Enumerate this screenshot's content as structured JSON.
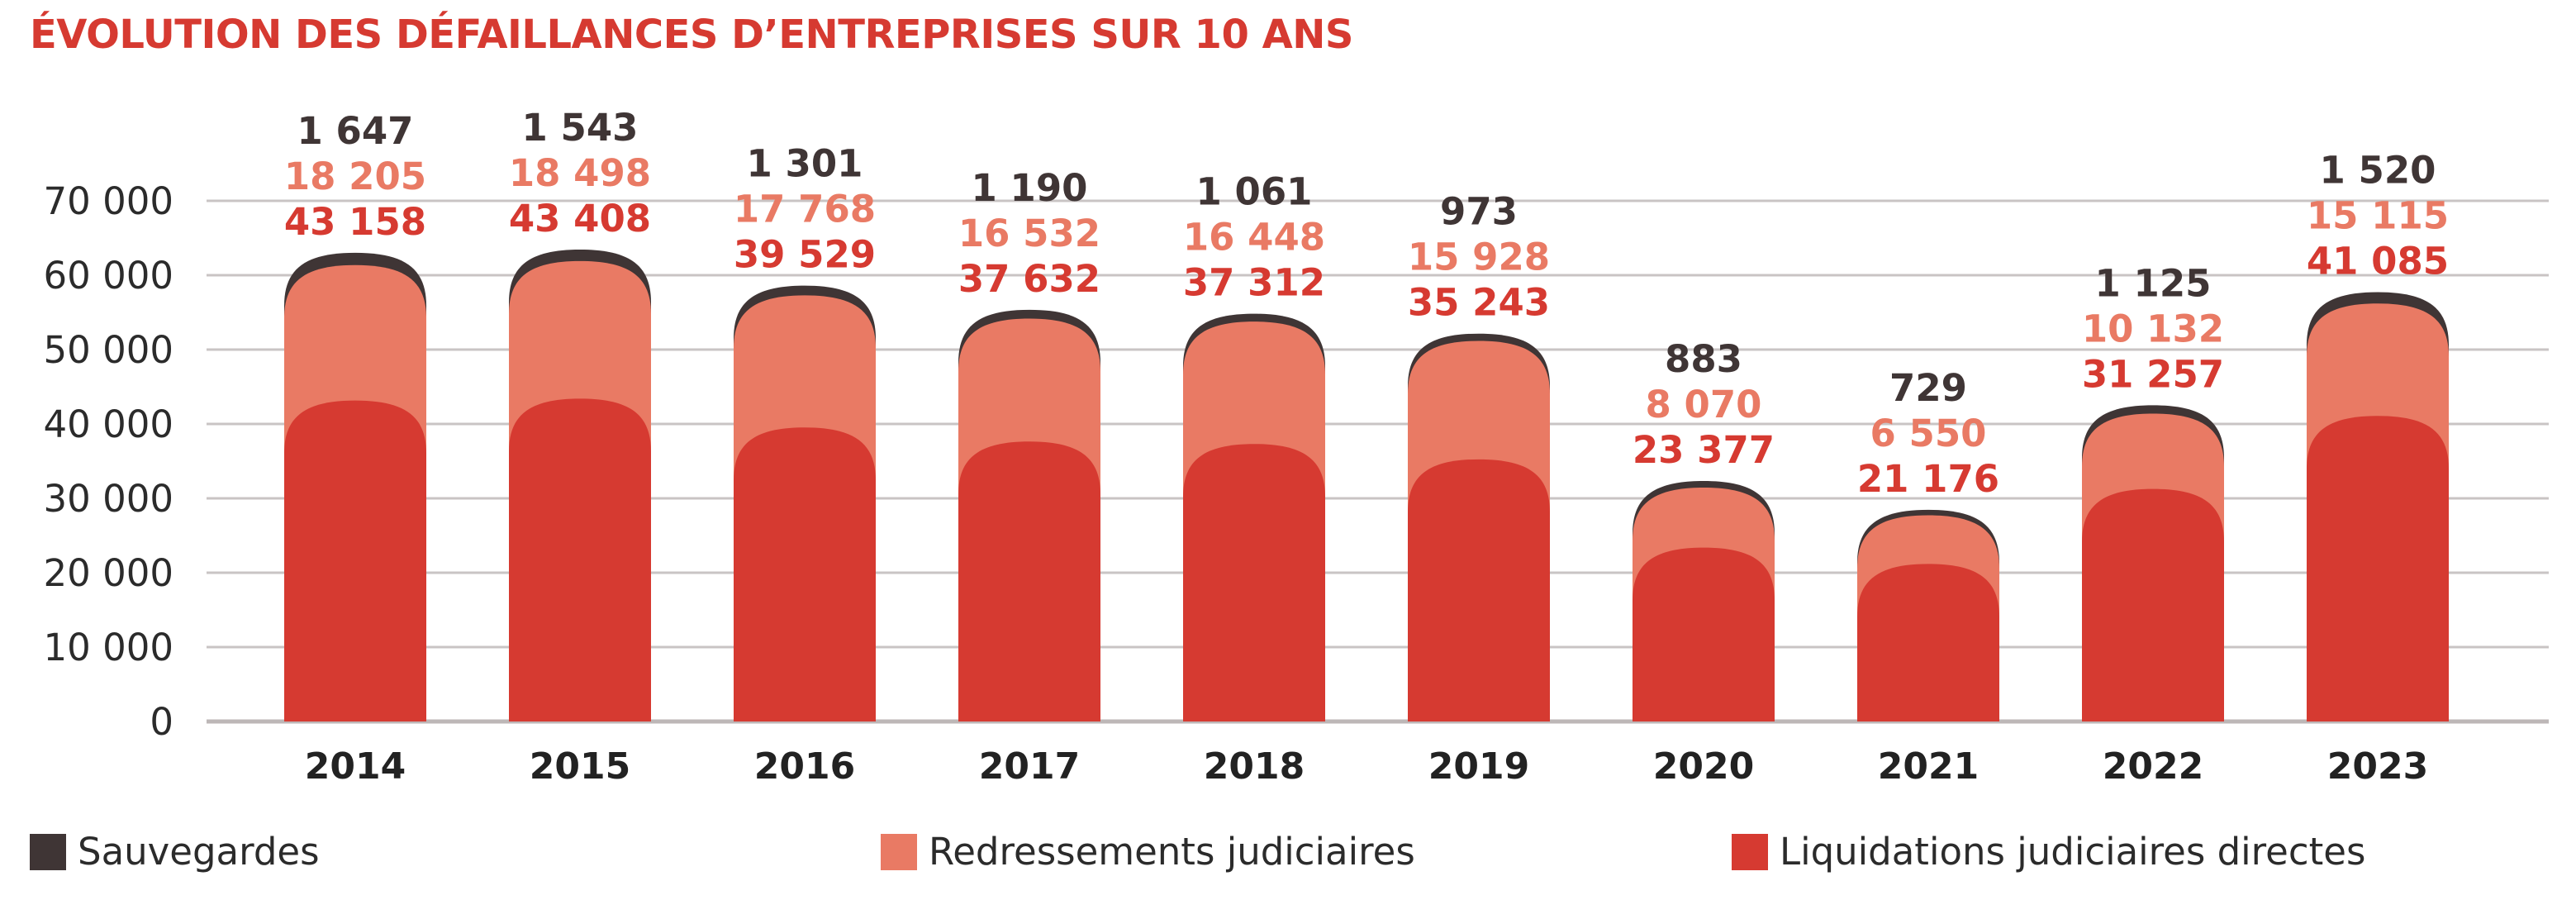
{
  "chart_data": {
    "type": "bar",
    "stacked": true,
    "title": "ÉVOLUTION DES DÉFAILLANCES D’ENTREPRISES SUR 10 ANS",
    "categories": [
      "2014",
      "2015",
      "2016",
      "2017",
      "2018",
      "2019",
      "2020",
      "2021",
      "2022",
      "2023"
    ],
    "series": [
      {
        "name": "Liquidations judiciaires directes",
        "color": "#d63a31",
        "values": [
          43158,
          43408,
          39529,
          37632,
          37312,
          35243,
          23377,
          21176,
          31257,
          41085
        ],
        "labels": [
          "43 158",
          "43 408",
          "39 529",
          "37 632",
          "37 312",
          "35 243",
          "23 377",
          "21 176",
          "31 257",
          "41 085"
        ]
      },
      {
        "name": "Redressements judiciaires",
        "color": "#e97a64",
        "values": [
          18205,
          18498,
          17768,
          16532,
          16448,
          15928,
          8070,
          6550,
          10132,
          15115
        ],
        "labels": [
          "18 205",
          "18 498",
          "17 768",
          "16 532",
          "16 448",
          "15 928",
          "8 070",
          "6 550",
          "10 132",
          "15 115"
        ]
      },
      {
        "name": "Sauvegardes",
        "color": "#3f3535",
        "values": [
          1647,
          1543,
          1301,
          1190,
          1061,
          973,
          883,
          729,
          1125,
          1520
        ],
        "labels": [
          "1 647",
          "1 543",
          "1 301",
          "1 190",
          "1 061",
          "973",
          "883",
          "729",
          "1 125",
          "1 520"
        ]
      }
    ],
    "yticks": [
      {
        "value": 0,
        "label": "0"
      },
      {
        "value": 10000,
        "label": "10 000"
      },
      {
        "value": 20000,
        "label": "20 000"
      },
      {
        "value": 30000,
        "label": "30 000"
      },
      {
        "value": 40000,
        "label": "40 000"
      },
      {
        "value": 50000,
        "label": "50 000"
      },
      {
        "value": 60000,
        "label": "60 000"
      },
      {
        "value": 70000,
        "label": "70 000"
      }
    ],
    "ylim": [
      0,
      70000
    ],
    "grid": true,
    "legend_position": "bottom",
    "xlabel": "",
    "ylabel": ""
  },
  "legend": {
    "sauvegardes": "Sauvegardes",
    "redressements": "Redressements judiciaires",
    "liquidations": "Liquidations judiciaires directes"
  },
  "colors": {
    "liquidations": "#d63a31",
    "redressements": "#e97a64",
    "sauvegardes": "#3f3535",
    "grid": "#c9c4c4",
    "text": "#2b2b2b"
  }
}
